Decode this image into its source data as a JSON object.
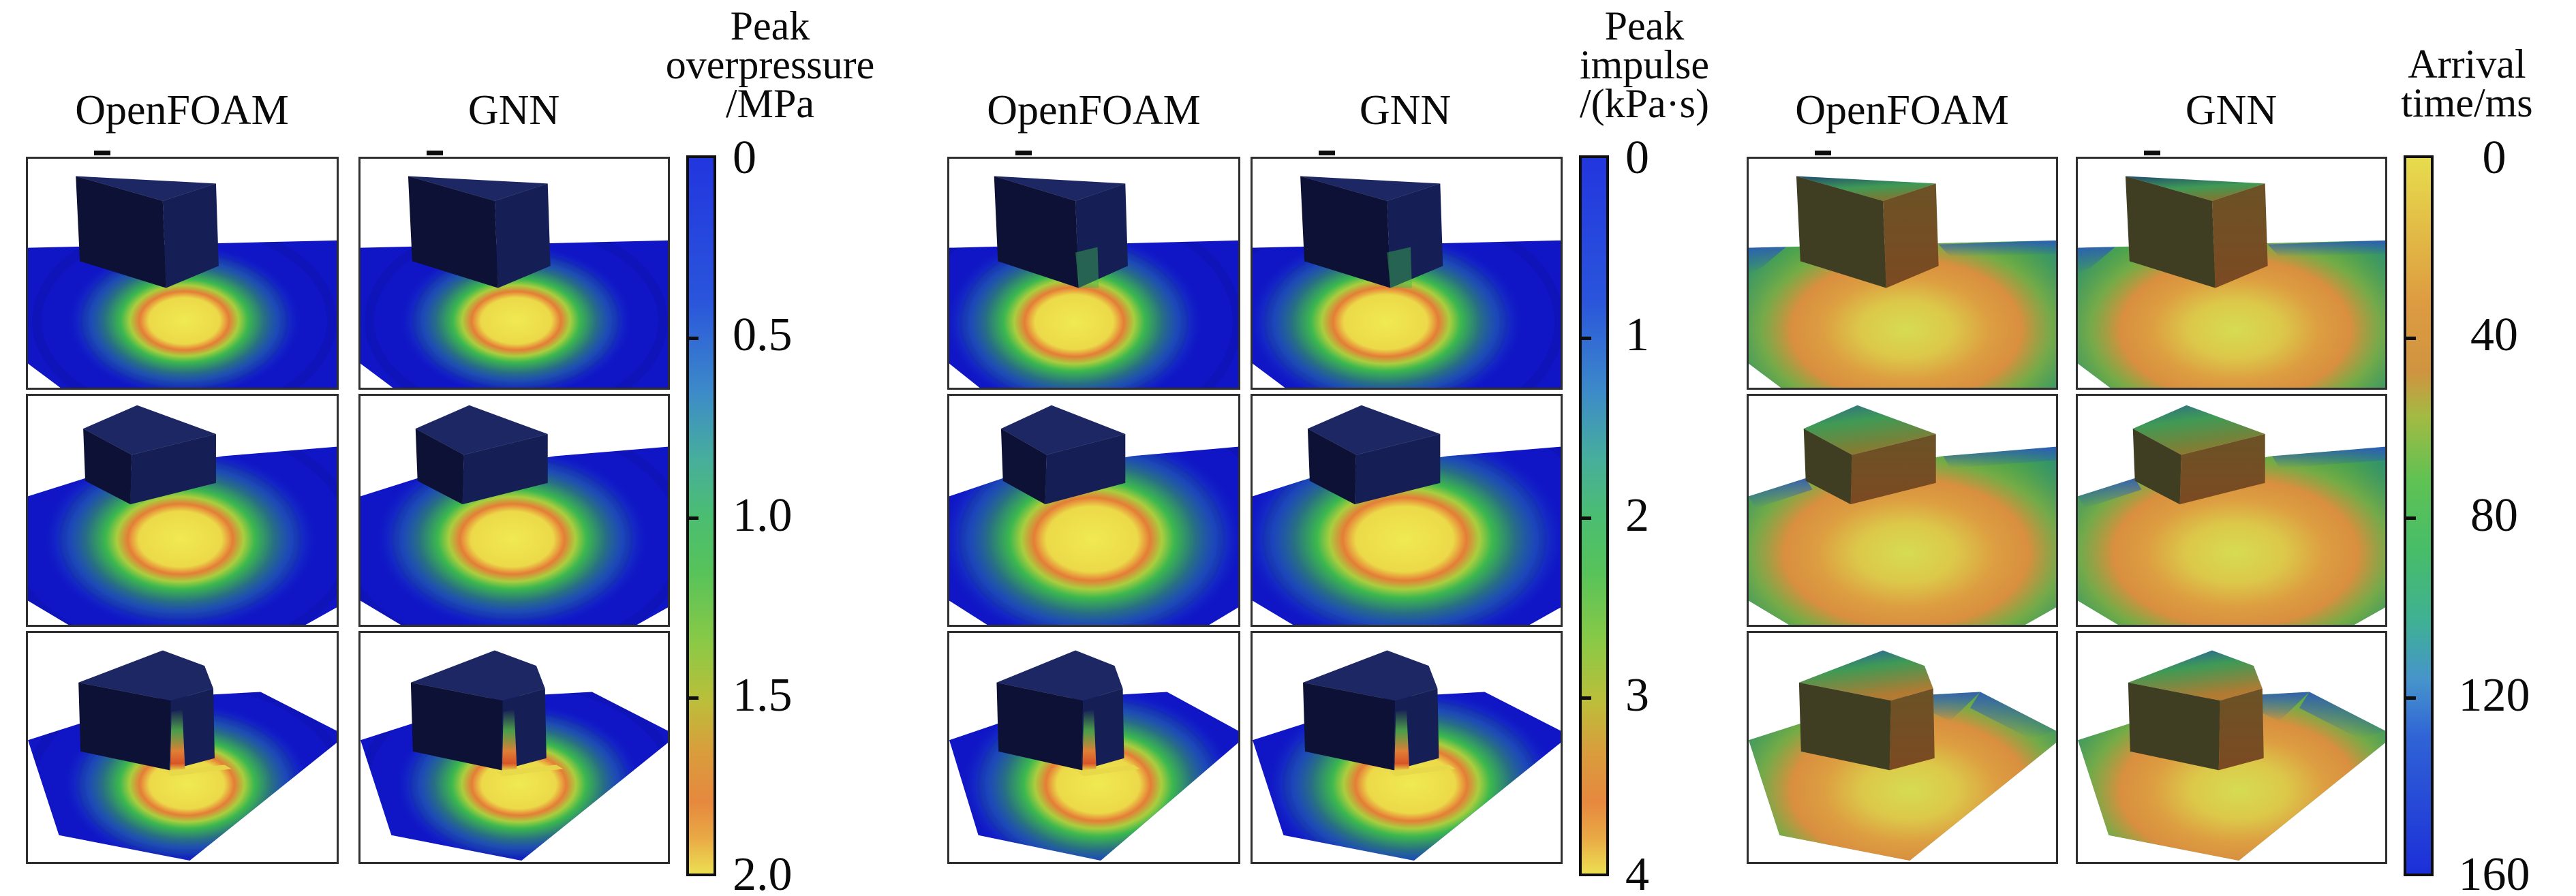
{
  "figure": {
    "kind": "CFD blast simulation comparison figure",
    "row_scenes": [
      "tall box on ground plane",
      "low wide box on ground plane",
      "large chamfered box on ground plane"
    ]
  },
  "groups": [
    {
      "id": "peak-overpressure",
      "columns": [
        "OpenFOAM",
        "GNN"
      ],
      "colorbar": {
        "title_lines": [
          "Peak",
          "overpressure",
          "/MPa"
        ],
        "ticks": [
          "0",
          "0.5",
          "1.0",
          "1.5",
          "2.0"
        ],
        "orientation": "blue-top-yellow-bottom"
      }
    },
    {
      "id": "peak-impulse",
      "columns": [
        "OpenFOAM",
        "GNN"
      ],
      "colorbar": {
        "title_lines": [
          "Peak",
          "impulse",
          "/(kPa·s)"
        ],
        "ticks": [
          "0",
          "1",
          "2",
          "3",
          "4"
        ],
        "orientation": "blue-top-yellow-bottom"
      }
    },
    {
      "id": "arrival-time",
      "columns": [
        "OpenFOAM",
        "GNN"
      ],
      "colorbar": {
        "title_lines": [
          "Arrival",
          "time/ms"
        ],
        "ticks": [
          "0",
          "40",
          "80",
          "120",
          "160"
        ],
        "orientation": "yellow-top-blue-bottom"
      }
    }
  ],
  "chart_data": [
    {
      "type": "heatmap",
      "title": "Peak overpressure /MPa",
      "series": [
        {
          "name": "OpenFOAM",
          "rows": 3
        },
        {
          "name": "GNN",
          "rows": 3
        }
      ],
      "colorbar_range": [
        0,
        2.0
      ],
      "colorbar_ticks": [
        0,
        0.5,
        1.0,
        1.5,
        2.0
      ],
      "legend_position": "right",
      "notes": "3 rows of 3D surface renderings; hotspot peak near 2.0 MPa at ground zero beside building"
    },
    {
      "type": "heatmap",
      "title": "Peak impulse /(kPa·s)",
      "series": [
        {
          "name": "OpenFOAM",
          "rows": 3
        },
        {
          "name": "GNN",
          "rows": 3
        }
      ],
      "colorbar_range": [
        0,
        4
      ],
      "colorbar_ticks": [
        0,
        1,
        2,
        3,
        4
      ],
      "legend_position": "right",
      "notes": "3 rows of 3D surface renderings; peak impulse near 4 kPa·s at hotspot"
    },
    {
      "type": "heatmap",
      "title": "Arrival time/ms",
      "series": [
        {
          "name": "OpenFOAM",
          "rows": 3
        },
        {
          "name": "GNN",
          "rows": 3
        }
      ],
      "colorbar_range": [
        0,
        160
      ],
      "colorbar_ticks": [
        0,
        40,
        80,
        120,
        160
      ],
      "legend_position": "right",
      "notes": "3 rows of 3D surface renderings; arrival time 0 (yellow) at source growing to 160 ms (blue) at far corners"
    }
  ],
  "palettes": {
    "field": {
      "plane": "#1016c6",
      "plane_deep": "#0d12a8",
      "box_left": "#0d1136",
      "box_right": "#161e56",
      "box_top": "#1c2764",
      "hot_core": "#f0ea51",
      "hot_yellow": "#ecd949",
      "hot_orange": "#e57d37",
      "hot_yellowgreen": "#aace3e",
      "hot_green": "#3cb84e",
      "hot_teal": "#2e96c0",
      "ring": "#0a0c8c",
      "streak_green": "#56b447",
      "streak_orange": "#e07f35",
      "streak_red": "#da5428",
      "streak_base": "#e6d84a"
    },
    "arrival": {
      "plane_mid": "#3aa04e",
      "plane_teal": "#2f8f74",
      "blob_core": "#d6dc52",
      "blob_yellow": "#dcc84a",
      "blob_orange": "#dd9e41",
      "blob_deep_orange": "#d98f3f",
      "blob_green": "#7fae44",
      "edge_blue": "#2b50c8",
      "box_left": "#3f3d22",
      "box_right": "#6b5226",
      "box_right_low": "#7c4a22",
      "box_top_back": "#1e4a70",
      "box_top_mid": "#3f9a55",
      "box_top_front": "#b27a32"
    },
    "field_gradient": [
      "#2236de 0%",
      "#2a55dc 20%",
      "#3d8cc8 33%",
      "#47ae9c 42%",
      "#4bbd72 50%",
      "#57c35a 58%",
      "#8cc945 68%",
      "#bcbe3a 76%",
      "#d99d3c 83%",
      "#e6883e 90%",
      "#e9a945 95%",
      "#ecdf52 100%"
    ],
    "arrival_gradient": [
      "#e7dc4d 0%",
      "#e2bc46 10%",
      "#de9c41 20%",
      "#cf9440 30%",
      "#a4ba43 36%",
      "#5fc253 45%",
      "#47bd69 55%",
      "#3fb095 65%",
      "#4694cc 73%",
      "#2f63d6 81%",
      "#1c2fd8 100%"
    ]
  }
}
